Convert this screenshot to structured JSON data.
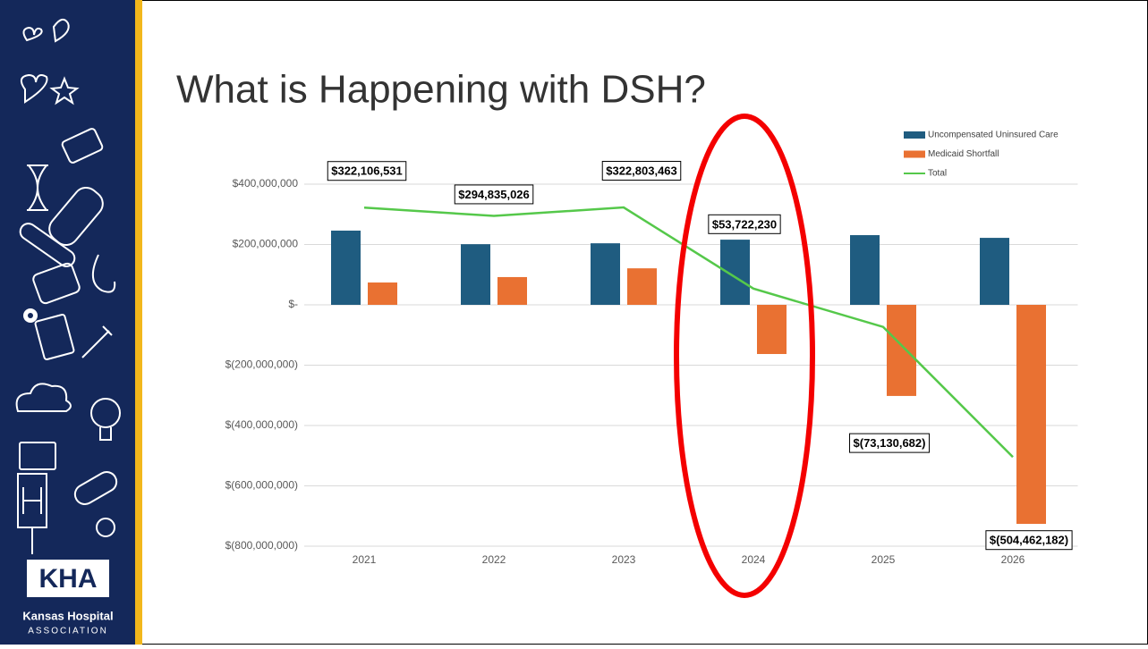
{
  "chart_data": {
    "type": "bar",
    "title": "What is Happening with DSH?",
    "categories": [
      "2021",
      "2022",
      "2023",
      "2024",
      "2025",
      "2026"
    ],
    "series": [
      {
        "name": "Uncompensated Uninsured Care",
        "color": "#1f5c80",
        "values": [
          246000000,
          201000000,
          204000000,
          216000000,
          231000000,
          222000000
        ]
      },
      {
        "name": "Medicaid Shortfall",
        "color": "#e97132",
        "values": [
          74000000,
          92000000,
          121000000,
          -163000000,
          -302000000,
          -726000000
        ]
      },
      {
        "name": "Total",
        "type": "line",
        "color": "#55c84a",
        "values": [
          322106531,
          294835026,
          322803463,
          53722230,
          -73130682,
          -504462182
        ],
        "value_labels": [
          "$322,106,531",
          "$294,835,026",
          "$322,803,463",
          "$53,722,230",
          "$(73,130,682)",
          "$(504,462,182)"
        ]
      }
    ],
    "ylim": [
      -800000000,
      400000000
    ],
    "yticks": [
      {
        "value": 400000000,
        "label": "$400,000,000"
      },
      {
        "value": 200000000,
        "label": "$200,000,000"
      },
      {
        "value": 0,
        "label": "$-"
      },
      {
        "value": -200000000,
        "label": "$(200,000,000)"
      },
      {
        "value": -400000000,
        "label": "$(400,000,000)"
      },
      {
        "value": -600000000,
        "label": "$(600,000,000)"
      },
      {
        "value": -800000000,
        "label": "$(800,000,000)"
      }
    ],
    "grid": true,
    "legend": "top-right"
  },
  "logo": {
    "mark": "KHA",
    "name": "Kansas Hospital",
    "tagline": "ASSOCIATION"
  }
}
